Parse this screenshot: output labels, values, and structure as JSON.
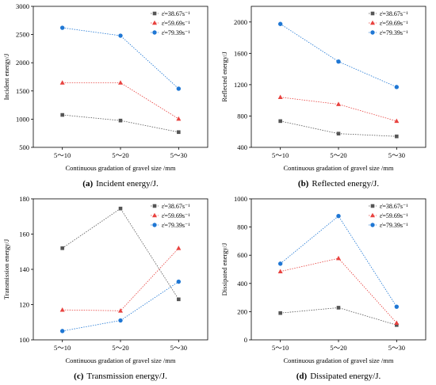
{
  "chart_data": [
    {
      "id": "a",
      "type": "line",
      "caption_id": "(a)",
      "caption_text": "Incident energy/J.",
      "xlabel": "Continuous gradation of gravel size /mm",
      "ylabel": "Incident energy/J",
      "categories": [
        "5～10",
        "5～20",
        "5～30"
      ],
      "ylim": [
        500,
        3000
      ],
      "yticks": [
        500,
        1000,
        1500,
        2000,
        2500,
        3000
      ],
      "legend_position": "top-right",
      "series": [
        {
          "name": "ε̇=38.67s⁻¹",
          "color": "#555555",
          "marker": "square",
          "values": [
            1075,
            975,
            770
          ]
        },
        {
          "name": "ε̇=59.69s⁻¹",
          "color": "#e8423f",
          "marker": "triangle",
          "values": [
            1645,
            1645,
            1005
          ]
        },
        {
          "name": "ε̇=79.39s⁻¹",
          "color": "#1f77d4",
          "marker": "circle",
          "values": [
            2620,
            2480,
            1540
          ]
        }
      ]
    },
    {
      "id": "b",
      "type": "line",
      "caption_id": "(b)",
      "caption_text": "Reflected energy/J.",
      "xlabel": "Continuous gradation of gravel size /mm",
      "ylabel": "Reflected energy/J",
      "categories": [
        "5～10",
        "5～20",
        "5～30"
      ],
      "ylim": [
        400,
        2200
      ],
      "yticks": [
        400,
        800,
        1200,
        1600,
        2000
      ],
      "legend_position": "top-right",
      "series": [
        {
          "name": "ε̇=38.67s⁻¹",
          "color": "#555555",
          "marker": "square",
          "values": [
            735,
            575,
            540
          ]
        },
        {
          "name": "ε̇=59.69s⁻¹",
          "color": "#e8423f",
          "marker": "triangle",
          "values": [
            1040,
            950,
            735
          ]
        },
        {
          "name": "ε̇=79.39s⁻¹",
          "color": "#1f77d4",
          "marker": "circle",
          "values": [
            1975,
            1495,
            1170
          ]
        }
      ]
    },
    {
      "id": "c",
      "type": "line",
      "caption_id": "(c)",
      "caption_text": "Transmission energy/J.",
      "xlabel": "Continuous gradation of gravel size /mm",
      "ylabel": "Transmission energy/J",
      "categories": [
        "5～10",
        "5～20",
        "5～30"
      ],
      "ylim": [
        100,
        180
      ],
      "yticks": [
        100,
        120,
        140,
        160,
        180
      ],
      "legend_position": "top-right",
      "series": [
        {
          "name": "ε̇=38.67s⁻¹",
          "color": "#555555",
          "marker": "square",
          "values": [
            152,
            174.5,
            123
          ]
        },
        {
          "name": "ε̇=59.69s⁻¹",
          "color": "#e8423f",
          "marker": "triangle",
          "values": [
            117,
            116.5,
            152
          ]
        },
        {
          "name": "ε̇=79.39s⁻¹",
          "color": "#1f77d4",
          "marker": "circle",
          "values": [
            105,
            111,
            133
          ]
        }
      ]
    },
    {
      "id": "d",
      "type": "line",
      "caption_id": "(d)",
      "caption_text": "Dissipated energy/J.",
      "xlabel": "Continuous gradation of gravel size /mm",
      "ylabel": "Dissipated energy/J",
      "categories": [
        "5～10",
        "5～20",
        "5～30"
      ],
      "ylim": [
        0,
        1000
      ],
      "yticks": [
        0,
        200,
        400,
        600,
        800,
        1000
      ],
      "legend_position": "top-right",
      "series": [
        {
          "name": "ε̇=38.67s⁻¹",
          "color": "#555555",
          "marker": "square",
          "values": [
            190,
            228,
            105
          ]
        },
        {
          "name": "ε̇=59.69s⁻¹",
          "color": "#e8423f",
          "marker": "triangle",
          "values": [
            485,
            578,
            120
          ]
        },
        {
          "name": "ε̇=79.39s⁻¹",
          "color": "#1f77d4",
          "marker": "circle",
          "values": [
            540,
            878,
            235
          ]
        }
      ]
    }
  ]
}
